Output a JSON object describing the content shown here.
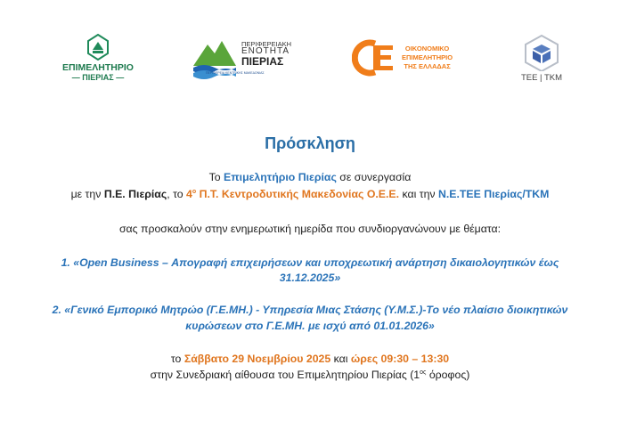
{
  "logos": [
    {
      "name": "epimelitirio-pierias-logo",
      "line1": "ΕΠΙΜΕΛΗΤΗΡΙΟ",
      "line2": "ΠΙΕΡΙΑΣ"
    },
    {
      "name": "perifereiaki-enotita-pierias-logo",
      "line1": "ΠΕΡΙΦΕΡΕΙΑΚΗ",
      "line2": "ΕΝΟΤΗΤΑ",
      "line3": "ΠΙΕΡΙΑΣ",
      "line4": "ΠΕΡΙΦΕΡΕΙΑ ΚΕΝΤΡΙΚΗΣ ΜΑΚΕΔΟΝΙΑΣ"
    },
    {
      "name": "oikonomiko-epimelitirio-logo",
      "line1": "ΟΙΚΟΝΟΜΙΚΟ",
      "line2": "ΕΠΙΜΕΛΗΤΗΡΙΟ",
      "line3": "ΤΗΣ ΕΛΛΑΔΑΣ"
    },
    {
      "name": "tee-tkm-logo",
      "line1": "TEE | TKM"
    }
  ],
  "colors": {
    "blue": "#2a73b8",
    "orange": "#e0761f"
  },
  "title": "Πρόσκληση",
  "intro": {
    "l1a": "Το ",
    "l1b": "Επιμελητήριο Πιερίας",
    "l1c": " σε συνεργασία",
    "l2a": "με την ",
    "l2b": "Π.Ε. Πιερίας",
    ", ": "",
    "l2c": ", το ",
    "l2d": "4",
    "l2sup": "ο",
    "l2e": " Π.Τ. Κεντροδυτικής Μακεδονίας Ο.Ε.Ε.",
    "l2f": " και την ",
    "l2g": "Ν.Ε.ΤΕΕ Πιερίας/ΤΚΜ",
    "l3": "σας προσκαλούν στην ενημερωτική ημερίδα που συνδιοργανώνουν με θέματα:"
  },
  "topics": [
    {
      "l1": "1. «Open Business – Απογραφή επιχειρήσεων και υποχρεωτική ανάρτηση δικαιολογητικών έως",
      "l2": "31.12.2025»"
    },
    {
      "l1": "2. «Γενικό Εμπορικό Μητρώο (Γ.Ε.ΜΗ.) - Υπηρεσία Μιας Στάσης (Υ.Μ.Σ.)-Το νέο πλαίσιο διοικητικών",
      "l2": "κυρώσεων στο Γ.Ε.ΜΗ. με ισχύ από 01.01.2026»"
    }
  ],
  "when": {
    "a": "το ",
    "b": "Σάββατο 29 Νοεμβρίου 2025",
    "c": " και ",
    "d": "ώρες 09:30 – 13:30"
  },
  "where": {
    "a": "στην Συνεδριακή αίθουσα του Επιμελητηρίου Πιερίας (1",
    "sup": "ος",
    "b": " όροφος)"
  }
}
